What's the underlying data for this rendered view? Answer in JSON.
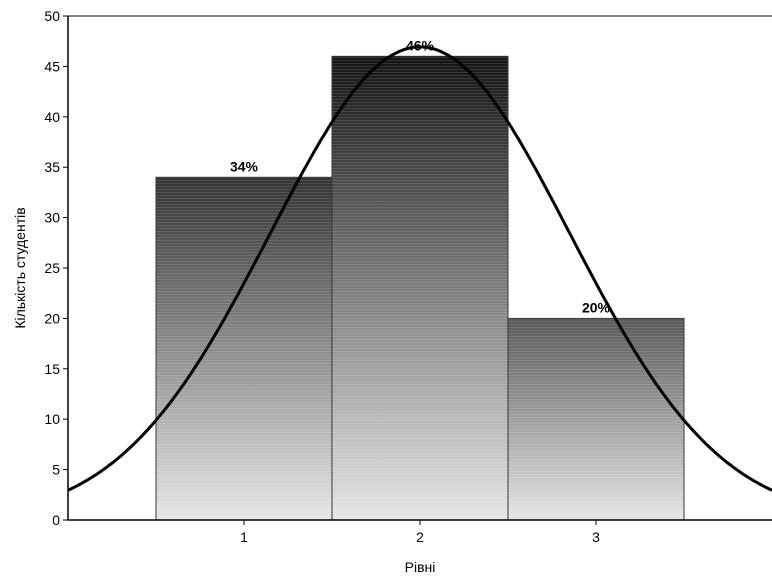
{
  "chart_data": {
    "type": "bar",
    "categories": [
      "1",
      "2",
      "3"
    ],
    "values": [
      34,
      46,
      20
    ],
    "data_labels": [
      "34%",
      "46%",
      "20%"
    ],
    "title": "",
    "xlabel": "Рівні",
    "ylabel": "Кількість студентів",
    "ylim": [
      0,
      50
    ],
    "yticks": [
      0,
      5,
      10,
      15,
      20,
      25,
      30,
      35,
      40,
      45,
      50
    ],
    "xlim": [
      0,
      4
    ],
    "normal_curve": {
      "mean": 2.0,
      "sd": 0.85,
      "total": 100,
      "bin_width": 1
    },
    "grid": false,
    "legend": "none",
    "colors": {
      "bar_top_dark": "#1a1a1a",
      "bar_bottom_light": "#e6e6e6",
      "bar_edge": "#333333",
      "curve": "#000000",
      "axis": "#000000"
    }
  }
}
